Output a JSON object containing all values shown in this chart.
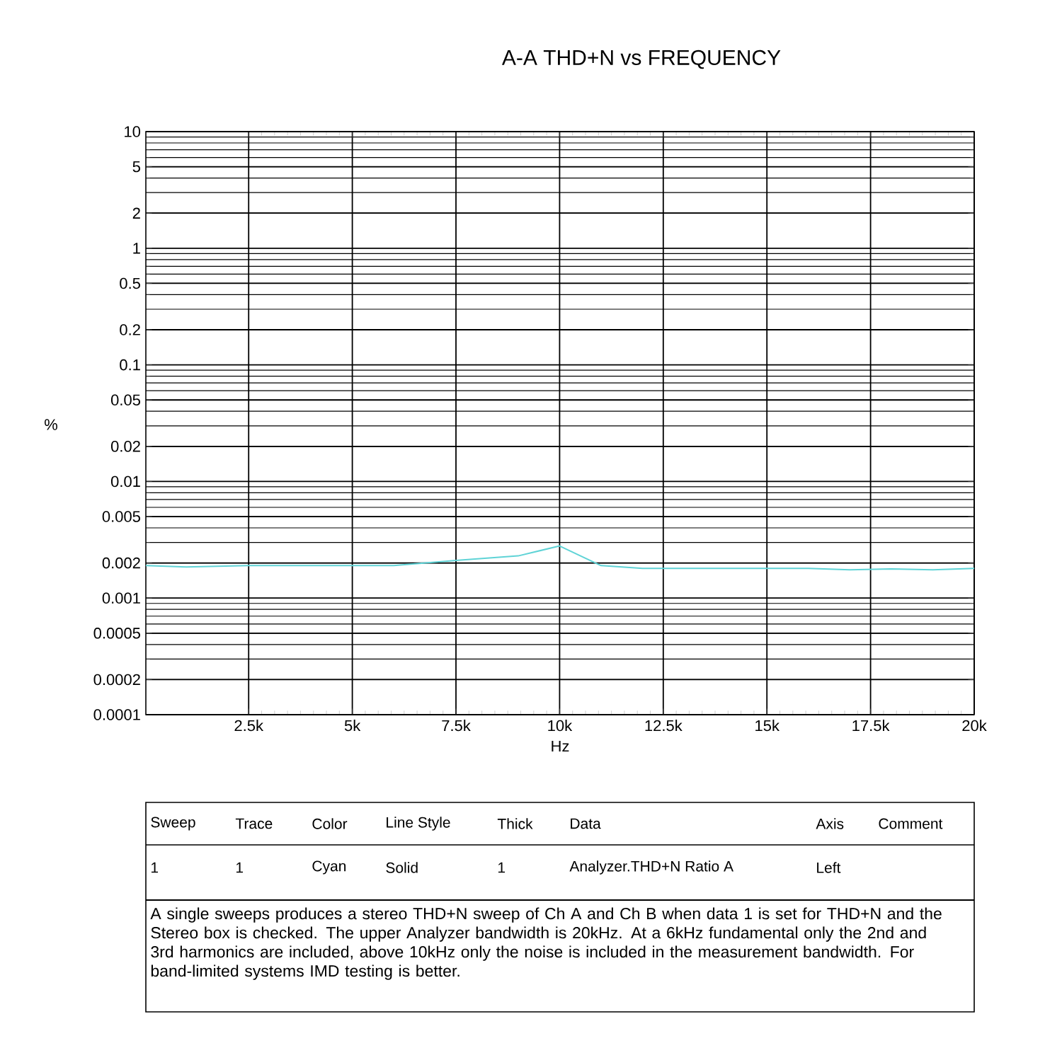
{
  "chart_data": {
    "type": "line",
    "title": "A-A THD+N vs FREQUENCY",
    "xlabel": "Hz",
    "ylabel": "%",
    "x": [
      20,
      1000,
      2500,
      5000,
      6000,
      7500,
      9000,
      10000,
      11000,
      12000,
      15000,
      16000,
      17000,
      18000,
      19000,
      20000
    ],
    "series": [
      {
        "color": "#5fd3d6",
        "values": [
          0.0019,
          0.00185,
          0.0019,
          0.0019,
          0.0019,
          0.0021,
          0.0023,
          0.0028,
          0.0019,
          0.0018,
          0.0018,
          0.0018,
          0.00175,
          0.00178,
          0.00175,
          0.0018
        ]
      }
    ],
    "log": "y",
    "grid": true,
    "marker": "none",
    "line_style": "solid",
    "xlim": [
      20,
      20000
    ],
    "xticks": [
      {
        "value": 2500,
        "label": "2.5k"
      },
      {
        "value": 5000,
        "label": "5k"
      },
      {
        "value": 7500,
        "label": "7.5k"
      },
      {
        "value": 10000,
        "label": "10k"
      },
      {
        "value": 12500,
        "label": "12.5k"
      },
      {
        "value": 15000,
        "label": "15k"
      },
      {
        "value": 17500,
        "label": "17.5k"
      },
      {
        "value": 20000,
        "label": "20k"
      }
    ],
    "ylim": [
      0.0001,
      10
    ],
    "yticks": [
      0.0001,
      0.0002,
      0.0005,
      0.001,
      0.002,
      0.005,
      0.01,
      0.02,
      0.05,
      0.1,
      0.2,
      0.5,
      1,
      2,
      5,
      10
    ],
    "annotations": [
      "Sweep",
      "Trace",
      "Color",
      "Line Style",
      "Thick",
      "Data",
      "Axis",
      "Comment",
      "1",
      "1",
      "Cyan",
      "Solid",
      "1",
      "Analyzer.THD+N Ratio A",
      "Left",
      "A single sweeps produces a stereo THD+N sweep of Ch A and Ch B when data 1 is set for THD+N and the Stereo box is checked.  The upper Analyzer bandwidth is 20kHz.  At a 6kHz fundamental only the 2nd and 3rd harmonics are included, above 10kHz only the noise is included in the measurement bandwidth.  For band-limited systems IMD testing is better."
    ]
  }
}
